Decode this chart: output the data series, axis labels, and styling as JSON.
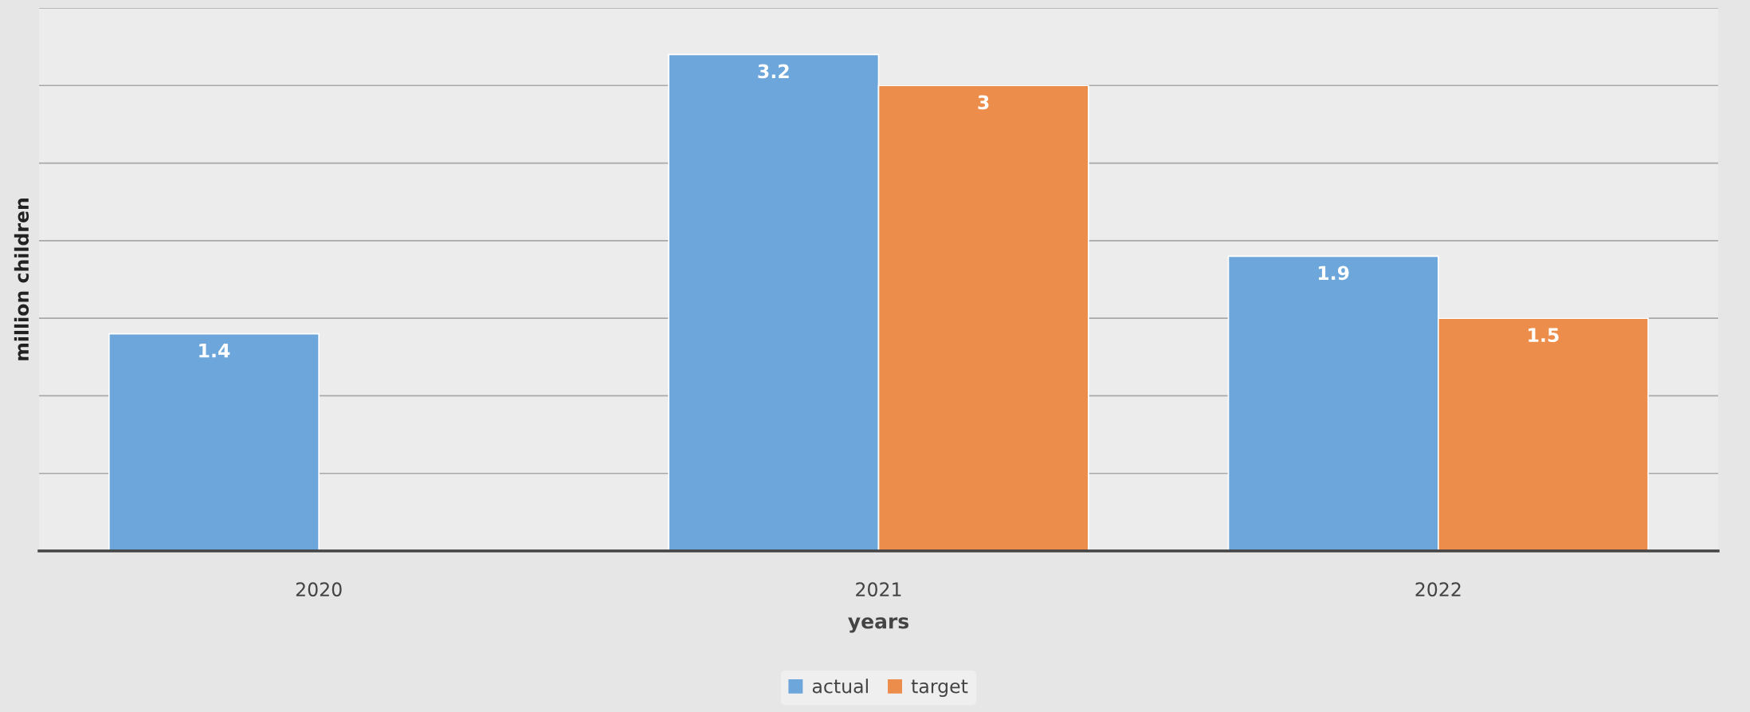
{
  "chart_data": {
    "type": "bar",
    "xlabel": "years",
    "ylabel": "million children",
    "categories": [
      "2020",
      "2021",
      "2022"
    ],
    "series": [
      {
        "name": "actual",
        "color": "#6ca6da",
        "values": [
          1.4,
          3.2,
          1.9
        ]
      },
      {
        "name": "target",
        "color": "#ed8d4b",
        "values": [
          null,
          3,
          1.5
        ]
      }
    ],
    "ylim": [
      0,
      3.5
    ],
    "yticks": [
      {
        "value": 0,
        "label": null
      },
      {
        "value": 0.5,
        "label": null
      },
      {
        "value": 1,
        "label": null
      },
      {
        "value": 1.5,
        "label": null
      },
      {
        "value": 2,
        "label": null
      },
      {
        "value": 2.5,
        "label": null
      },
      {
        "value": 3,
        "label": null
      },
      {
        "value": 3.5,
        "label": null
      }
    ],
    "tick_labels": "x",
    "grid": "y",
    "legend": "bottom",
    "data_labels": true
  }
}
